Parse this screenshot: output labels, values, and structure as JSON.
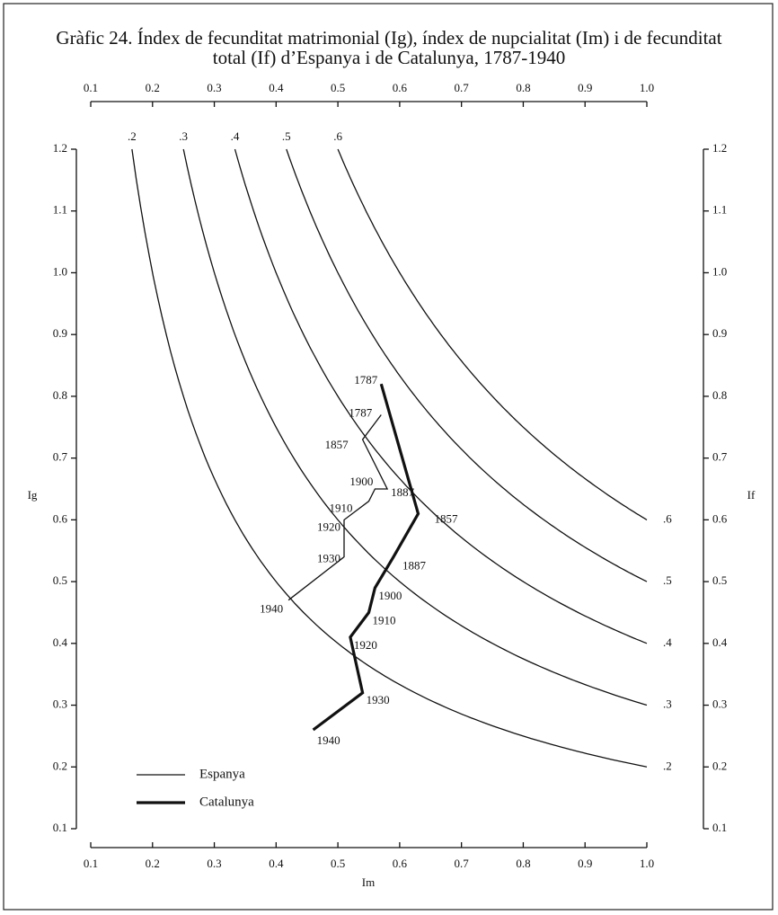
{
  "chart_data": {
    "type": "line",
    "title_lines": [
      "Gràfic 24.  Índex de fecunditat matrimonial (Ig), índex de nupcialitat (Im) i de fecunditat",
      "total (If) d’Espanya i de Catalunya, 1787-1940"
    ],
    "xlabel": "Im",
    "ylabel": "Ig",
    "y2label": "If",
    "xlim": [
      0.1,
      1.0
    ],
    "xticks": [
      0.1,
      0.2,
      0.3,
      0.4,
      0.5,
      0.6,
      0.7,
      0.8,
      0.9,
      {
        "value": 1.0,
        "label": "1.0"
      }
    ],
    "ylim": [
      0.1,
      1.2
    ],
    "yticks": [
      0.1,
      0.2,
      0.3,
      0.4,
      0.5,
      0.6,
      0.7,
      0.8,
      0.9,
      {
        "value": 1.0,
        "label": "1.0"
      },
      1.1,
      1.2
    ],
    "y2lim": [
      0.1,
      1.2
    ],
    "y2ticks": [
      0.1,
      0.2,
      0.3,
      0.4,
      0.5,
      0.6,
      0.7,
      0.8,
      0.9,
      {
        "value": 1.0,
        "label": "1.0"
      },
      1.1,
      1.2
    ],
    "isolines": [
      {
        "value": 0.2,
        "label": ".2"
      },
      {
        "value": 0.3,
        "label": ".3"
      },
      {
        "value": 0.4,
        "label": ".4"
      },
      {
        "value": 0.5,
        "label": ".5"
      },
      {
        "value": 0.6,
        "label": ".6"
      }
    ],
    "series": [
      {
        "name": "Espanya",
        "color": "#111111",
        "line_width": 1.3,
        "x": [
          0.57,
          0.54,
          0.58,
          0.56,
          0.55,
          0.51,
          0.51,
          0.42
        ],
        "values": [
          0.77,
          0.73,
          0.65,
          0.65,
          0.63,
          0.6,
          0.54,
          0.47
        ],
        "point_labels": [
          "1787",
          "1857",
          "1887",
          "1900",
          "1910",
          "1920",
          "1930",
          "1940"
        ]
      },
      {
        "name": "Catalunya",
        "color": "#111111",
        "line_width": 3.2,
        "x": [
          0.57,
          0.63,
          0.59,
          0.56,
          0.55,
          0.52,
          0.54,
          0.46
        ],
        "values": [
          0.82,
          0.61,
          0.54,
          0.49,
          0.45,
          0.41,
          0.32,
          0.26
        ],
        "point_labels": [
          "1787",
          "1857",
          "1887",
          "1900",
          "1910",
          "1920",
          "1930",
          "1940"
        ]
      }
    ]
  }
}
